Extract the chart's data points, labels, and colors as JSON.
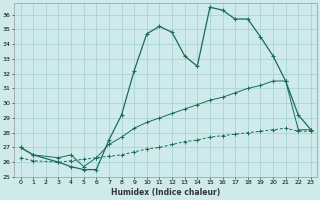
{
  "xlabel": "Humidex (Indice chaleur)",
  "bg_color": "#ceeaea",
  "grid_color": "#aad4d4",
  "line_color": "#1a6b5a",
  "xlim": [
    -0.5,
    23.5
  ],
  "ylim": [
    25,
    36.8
  ],
  "xticks": [
    0,
    1,
    2,
    3,
    4,
    5,
    6,
    7,
    8,
    9,
    10,
    11,
    12,
    13,
    14,
    15,
    16,
    17,
    18,
    19,
    20,
    21,
    22,
    23
  ],
  "yticks": [
    25,
    26,
    27,
    28,
    29,
    30,
    31,
    32,
    33,
    34,
    35,
    36
  ],
  "series1_x": [
    0,
    1,
    3,
    4,
    5,
    6,
    7,
    8,
    9,
    10,
    11,
    12,
    13,
    14,
    15,
    16,
    17,
    18,
    19,
    20,
    21,
    22,
    23
  ],
  "series1_y": [
    27.0,
    26.5,
    26.0,
    25.7,
    25.5,
    25.5,
    27.5,
    29.2,
    32.2,
    34.7,
    35.2,
    34.8,
    33.2,
    32.5,
    36.5,
    36.3,
    35.7,
    35.7,
    34.5,
    33.2,
    31.5,
    29.2,
    28.2
  ],
  "series2_x": [
    0,
    1,
    3,
    4,
    5,
    6,
    7,
    8,
    9,
    10,
    11,
    12,
    13,
    14,
    15,
    16,
    17,
    18,
    19,
    20,
    21,
    22,
    23
  ],
  "series2_y": [
    27.0,
    26.5,
    26.3,
    26.5,
    25.7,
    26.3,
    27.2,
    27.7,
    28.3,
    28.7,
    29.0,
    29.3,
    29.6,
    29.9,
    30.2,
    30.4,
    30.7,
    31.0,
    31.2,
    31.5,
    31.5,
    28.2,
    28.2
  ],
  "series3_x": [
    0,
    1,
    3,
    4,
    5,
    6,
    7,
    8,
    9,
    10,
    11,
    12,
    13,
    14,
    15,
    16,
    17,
    18,
    19,
    20,
    21,
    22,
    23
  ],
  "series3_y": [
    26.3,
    26.1,
    26.0,
    26.1,
    26.2,
    26.3,
    26.4,
    26.5,
    26.7,
    26.9,
    27.0,
    27.2,
    27.4,
    27.5,
    27.7,
    27.8,
    27.9,
    28.0,
    28.1,
    28.2,
    28.3,
    28.1,
    28.1
  ]
}
